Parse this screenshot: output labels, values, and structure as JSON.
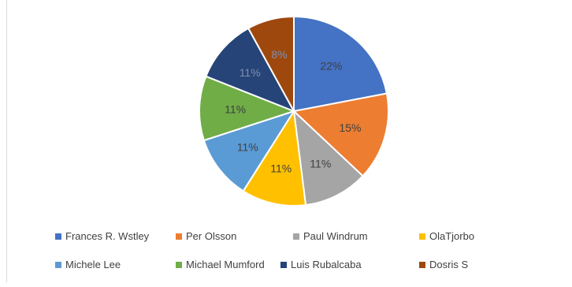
{
  "chart_data": {
    "type": "pie",
    "title": "",
    "series": [
      {
        "name": "Frances R. Wstley",
        "value": 22,
        "label": "22%",
        "color": "#4472C4"
      },
      {
        "name": "Per Olsson",
        "value": 15,
        "label": "15%",
        "color": "#ED7D31"
      },
      {
        "name": "Paul Windrum",
        "value": 11,
        "label": "11%",
        "color": "#A5A5A5"
      },
      {
        "name": "OlaTjorbo",
        "value": 11,
        "label": "11%",
        "color": "#FFC000"
      },
      {
        "name": "Michele Lee",
        "value": 11,
        "label": "11%",
        "color": "#5B9BD5"
      },
      {
        "name": "Michael Mumford",
        "value": 11,
        "label": "11%",
        "color": "#70AD47"
      },
      {
        "name": "Luis Rubalcaba",
        "value": 11,
        "label": "11%",
        "color": "#264478"
      },
      {
        "name": "Dosris S",
        "value": 8,
        "label": "8%",
        "color": "#9E480E"
      }
    ],
    "legend_position": "bottom"
  }
}
